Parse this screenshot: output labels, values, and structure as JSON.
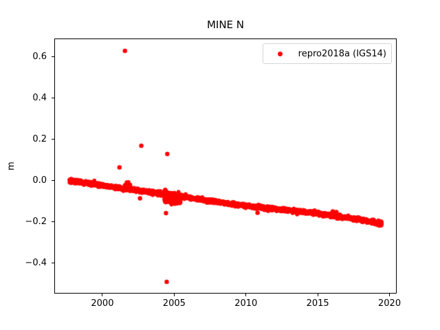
{
  "figure": {
    "title": "MINE N",
    "ylabel": "m"
  },
  "legend": {
    "label": "repro2018a (IGS14)",
    "marker_color": "#ff0000"
  },
  "chart_data": {
    "type": "scatter",
    "title": "MINE N",
    "xlabel": "",
    "ylabel": "m",
    "grid": false,
    "legend_position": "upper right",
    "series": [
      {
        "name": "repro2018a (IGS14)",
        "color": "#ff0000",
        "marker": "dot",
        "marker_px_radius": 2.8,
        "description": "Dense daily GNSS north-position time series: near-linear decline from 0.00 m in 1997.7 to about -0.21 m in 2019.4, with isolated outliers."
      }
    ],
    "xlim": [
      1996.65,
      2020.5
    ],
    "ylim": [
      -0.547,
      0.69
    ],
    "xticks": [
      2000,
      2005,
      2010,
      2015,
      2020
    ],
    "xtick_labels": [
      "2000",
      "2005",
      "2010",
      "2015",
      "2020"
    ],
    "ytick_values": [
      0.6,
      0.4,
      0.2,
      0.0,
      -0.2,
      -0.4
    ],
    "ytick_labels": [
      "0.6",
      "0.4",
      "0.2",
      "0.0",
      "−0.2",
      "−0.4"
    ],
    "x_start": 1997.7,
    "x_end": 2019.45,
    "n_points": 2400,
    "noise_sigma": 0.0045,
    "trend": [
      [
        1997.7,
        0.0
      ],
      [
        2000.0,
        -0.022
      ],
      [
        2005.0,
        -0.072
      ],
      [
        2010.0,
        -0.122
      ],
      [
        2015.0,
        -0.158
      ],
      [
        2019.45,
        -0.205
      ]
    ],
    "clusters": [
      {
        "x0": 1997.75,
        "x1": 1998.15,
        "n": 60,
        "sigma": 0.004,
        "bias": 0.002
      },
      {
        "x0": 2001.55,
        "x1": 2001.95,
        "n": 30,
        "sigma": 0.007,
        "bias": 0.014
      },
      {
        "x0": 2004.3,
        "x1": 2005.5,
        "n": 110,
        "sigma": 0.016,
        "bias": -0.01
      },
      {
        "x0": 2019.18,
        "x1": 2019.45,
        "n": 110,
        "sigma": 0.005,
        "bias": -0.002
      }
    ],
    "outliers": [
      [
        2001.19,
        0.065
      ],
      [
        2001.57,
        0.63
      ],
      [
        2002.62,
        -0.085
      ],
      [
        2002.71,
        0.17
      ],
      [
        2004.43,
        -0.157
      ],
      [
        2004.48,
        -0.49
      ],
      [
        2004.52,
        0.13
      ],
      [
        2005.43,
        -0.097
      ],
      [
        2010.81,
        -0.155
      ],
      [
        2016.05,
        -0.148
      ],
      [
        2016.3,
        -0.152
      ]
    ]
  }
}
